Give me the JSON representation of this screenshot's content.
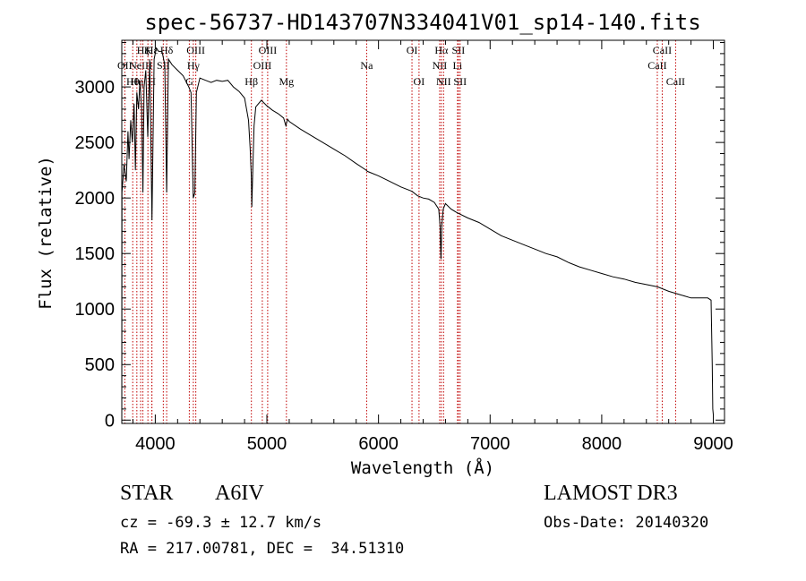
{
  "chart_data": {
    "type": "line",
    "title": "spec-56737-HD143707N334041V01_sp14-140.fits",
    "xlabel": "Wavelength (Å)",
    "ylabel": "Flux (relative)",
    "xlim": [
      3700,
      9100
    ],
    "ylim": [
      -30,
      3420
    ],
    "xticks": [
      4000,
      5000,
      6000,
      7000,
      8000,
      9000
    ],
    "yticks": [
      0,
      500,
      1000,
      1500,
      2000,
      2500,
      3000
    ],
    "spectrum": [
      [
        3700,
        0
      ],
      [
        3702,
        2050
      ],
      [
        3720,
        2300
      ],
      [
        3740,
        2150
      ],
      [
        3755,
        2600
      ],
      [
        3765,
        2350
      ],
      [
        3780,
        2700
      ],
      [
        3795,
        2500
      ],
      [
        3810,
        2850
      ],
      [
        3822,
        2250
      ],
      [
        3835,
        2950
      ],
      [
        3850,
        2800
      ],
      [
        3862,
        3050
      ],
      [
        3878,
        2800
      ],
      [
        3889,
        2050
      ],
      [
        3900,
        3000
      ],
      [
        3915,
        3150
      ],
      [
        3933,
        2550
      ],
      [
        3950,
        3250
      ],
      [
        3970,
        1800
      ],
      [
        3990,
        3250
      ],
      [
        4010,
        3350
      ],
      [
        4030,
        3320
      ],
      [
        4060,
        3320
      ],
      [
        4085,
        3200
      ],
      [
        4102,
        2050
      ],
      [
        4118,
        3250
      ],
      [
        4150,
        3200
      ],
      [
        4200,
        3150
      ],
      [
        4250,
        3100
      ],
      [
        4300,
        3000
      ],
      [
        4320,
        2950
      ],
      [
        4340,
        2000
      ],
      [
        4355,
        2050
      ],
      [
        4368,
        2950
      ],
      [
        4400,
        3080
      ],
      [
        4450,
        3060
      ],
      [
        4500,
        3040
      ],
      [
        4550,
        3060
      ],
      [
        4600,
        3050
      ],
      [
        4650,
        3060
      ],
      [
        4700,
        3000
      ],
      [
        4750,
        2960
      ],
      [
        4800,
        2900
      ],
      [
        4835,
        2700
      ],
      [
        4850,
        2450
      ],
      [
        4861,
        2180
      ],
      [
        4865,
        1920
      ],
      [
        4872,
        2200
      ],
      [
        4885,
        2650
      ],
      [
        4900,
        2820
      ],
      [
        4950,
        2880
      ],
      [
        5000,
        2830
      ],
      [
        5050,
        2790
      ],
      [
        5100,
        2760
      ],
      [
        5150,
        2720
      ],
      [
        5170,
        2650
      ],
      [
        5185,
        2710
      ],
      [
        5200,
        2690
      ],
      [
        5300,
        2620
      ],
      [
        5400,
        2560
      ],
      [
        5500,
        2500
      ],
      [
        5600,
        2440
      ],
      [
        5700,
        2380
      ],
      [
        5800,
        2310
      ],
      [
        5890,
        2250
      ],
      [
        5900,
        2240
      ],
      [
        6000,
        2200
      ],
      [
        6100,
        2150
      ],
      [
        6200,
        2100
      ],
      [
        6300,
        2060
      ],
      [
        6350,
        2020
      ],
      [
        6400,
        2000
      ],
      [
        6450,
        1990
      ],
      [
        6500,
        1960
      ],
      [
        6540,
        1900
      ],
      [
        6552,
        1750
      ],
      [
        6560,
        1450
      ],
      [
        6567,
        1750
      ],
      [
        6580,
        1900
      ],
      [
        6600,
        1950
      ],
      [
        6650,
        1900
      ],
      [
        6700,
        1870
      ],
      [
        6800,
        1820
      ],
      [
        6900,
        1780
      ],
      [
        7000,
        1720
      ],
      [
        7100,
        1660
      ],
      [
        7200,
        1620
      ],
      [
        7300,
        1580
      ],
      [
        7400,
        1540
      ],
      [
        7500,
        1500
      ],
      [
        7600,
        1470
      ],
      [
        7700,
        1420
      ],
      [
        7800,
        1380
      ],
      [
        7900,
        1350
      ],
      [
        8000,
        1320
      ],
      [
        8100,
        1290
      ],
      [
        8200,
        1270
      ],
      [
        8300,
        1240
      ],
      [
        8400,
        1220
      ],
      [
        8500,
        1200
      ],
      [
        8600,
        1160
      ],
      [
        8700,
        1130
      ],
      [
        8800,
        1100
      ],
      [
        8900,
        1100
      ],
      [
        8950,
        1100
      ],
      [
        8980,
        1080
      ],
      [
        8990,
        500
      ],
      [
        8995,
        100
      ],
      [
        9000,
        50
      ]
    ],
    "line_markers": [
      {
        "w": 3727,
        "label": "OII",
        "row": 2
      },
      {
        "w": 3798,
        "label": "Hθ",
        "row": 3
      },
      {
        "w": 3835,
        "label": "Hη",
        "row": 3
      },
      {
        "w": 3869,
        "label": "NeIII",
        "row": 2
      },
      {
        "w": 3889,
        "label": "Hζ",
        "row": 1
      },
      {
        "w": 3934,
        "label": "K",
        "row": 1
      },
      {
        "w": 3969,
        "label": "H",
        "row": 3
      },
      {
        "w": 3970,
        "label": "Hε",
        "row": 1
      },
      {
        "w": 4072,
        "label": "SII",
        "row": 2
      },
      {
        "w": 4102,
        "label": "Hδ",
        "row": 1
      },
      {
        "w": 4305,
        "label": "G",
        "row": 3
      },
      {
        "w": 4341,
        "label": "Hγ",
        "row": 2
      },
      {
        "w": 4363,
        "label": "OIII",
        "row": 1
      },
      {
        "w": 4861,
        "label": "Hβ",
        "row": 3
      },
      {
        "w": 4959,
        "label": "OIII",
        "row": 2
      },
      {
        "w": 5007,
        "label": "OIII",
        "row": 1
      },
      {
        "w": 5175,
        "label": "Mg",
        "row": 3
      },
      {
        "w": 5894,
        "label": "Na",
        "row": 2
      },
      {
        "w": 6300,
        "label": "OI",
        "row": 1
      },
      {
        "w": 6363,
        "label": "OI",
        "row": 3
      },
      {
        "w": 6548,
        "label": "NII",
        "row": 2
      },
      {
        "w": 6563,
        "label": "Hα",
        "row": 1
      },
      {
        "w": 6583,
        "label": "NII",
        "row": 3
      },
      {
        "w": 6708,
        "label": "Li",
        "row": 2
      },
      {
        "w": 6716,
        "label": "SII",
        "row": 1
      },
      {
        "w": 6731,
        "label": "SII",
        "row": 3
      },
      {
        "w": 8498,
        "label": "CaII",
        "row": 2
      },
      {
        "w": 8542,
        "label": "CaII",
        "row": 1
      },
      {
        "w": 8662,
        "label": "CaII",
        "row": 3
      }
    ]
  },
  "info": {
    "object_class": "STAR",
    "subclass": "A6IV",
    "survey": "LAMOST DR3",
    "redshift_text": "cz = -69.3 ± 12.7 km/s",
    "obs_date_text": "Obs-Date: 20140320",
    "coords_text": "RA = 217.00781, DEC =  34.51310"
  }
}
